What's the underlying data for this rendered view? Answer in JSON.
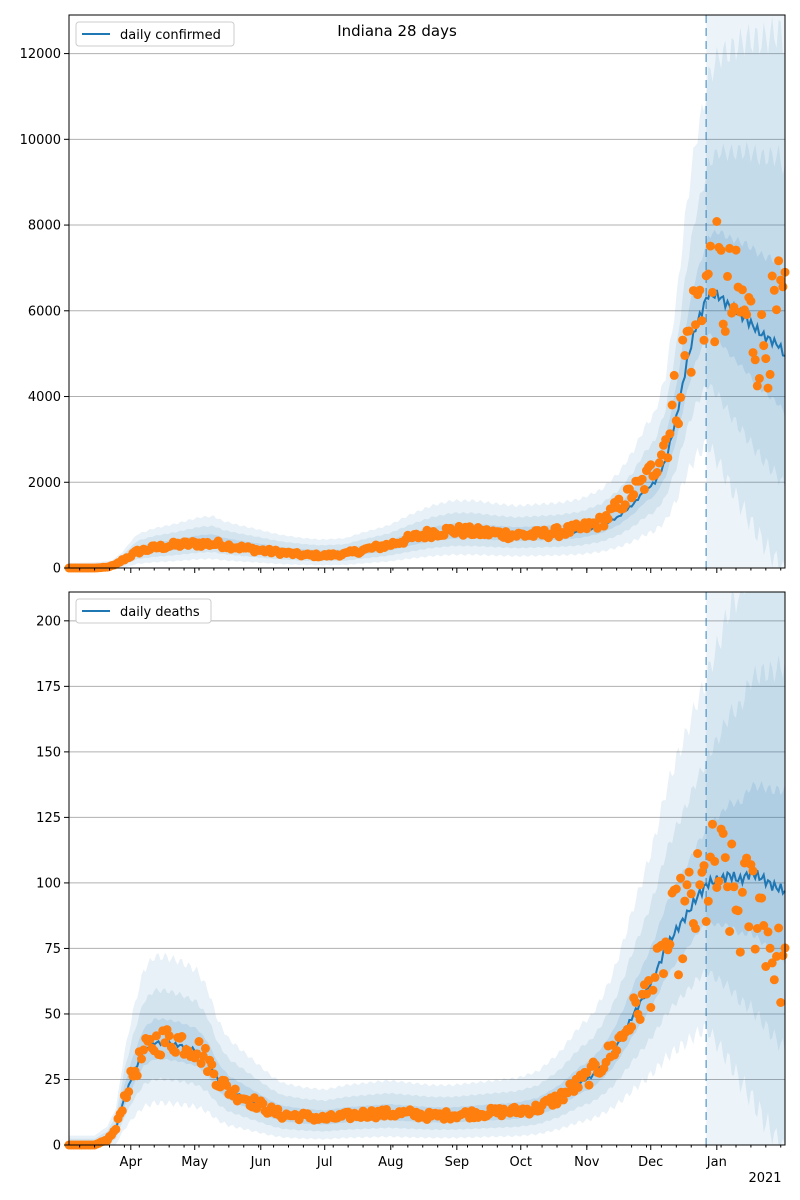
{
  "chart_data": [
    {
      "type": "line",
      "title": "Indiana 28 days",
      "legend": {
        "label": "daily confirmed",
        "placement": "top-left"
      },
      "ylim": [
        0,
        12900
      ],
      "yticks": [
        0,
        2000,
        4000,
        6000,
        8000,
        10000,
        12000
      ],
      "grid": "horizontal",
      "forecast_start_day": 299,
      "colors": {
        "line": "#1f77b4",
        "points": "#ff7f0e",
        "band": "#1f77b4"
      },
      "model_knots": [
        [
          0,
          0
        ],
        [
          10,
          5
        ],
        [
          15,
          15
        ],
        [
          20,
          30
        ],
        [
          25,
          140
        ],
        [
          28,
          250
        ],
        [
          32,
          380
        ],
        [
          40,
          460
        ],
        [
          50,
          520
        ],
        [
          55,
          560
        ],
        [
          62,
          610
        ],
        [
          68,
          620
        ],
        [
          72,
          560
        ],
        [
          80,
          500
        ],
        [
          88,
          450
        ],
        [
          95,
          400
        ],
        [
          100,
          370
        ],
        [
          110,
          330
        ],
        [
          118,
          310
        ],
        [
          125,
          320
        ],
        [
          130,
          330
        ],
        [
          135,
          380
        ],
        [
          140,
          420
        ],
        [
          150,
          500
        ],
        [
          160,
          640
        ],
        [
          170,
          760
        ],
        [
          180,
          830
        ],
        [
          190,
          830
        ],
        [
          200,
          790
        ],
        [
          210,
          760
        ],
        [
          220,
          780
        ],
        [
          230,
          800
        ],
        [
          240,
          850
        ],
        [
          250,
          980
        ],
        [
          258,
          1200
        ],
        [
          265,
          1500
        ],
        [
          270,
          1800
        ],
        [
          275,
          2000
        ],
        [
          280,
          2500
        ],
        [
          285,
          3500
        ],
        [
          290,
          4800
        ],
        [
          294,
          5600
        ],
        [
          297,
          6000
        ],
        [
          300,
          6400
        ],
        [
          305,
          6350
        ],
        [
          310,
          6100
        ],
        [
          318,
          5800
        ],
        [
          325,
          5450
        ],
        [
          333,
          5200
        ],
        [
          336,
          4950
        ]
      ],
      "observed_knots": [
        [
          0,
          0
        ],
        [
          12,
          0
        ],
        [
          18,
          20
        ],
        [
          22,
          80
        ],
        [
          25,
          180
        ],
        [
          28,
          260
        ],
        [
          32,
          380
        ],
        [
          40,
          470
        ],
        [
          50,
          540
        ],
        [
          60,
          570
        ],
        [
          70,
          560
        ],
        [
          80,
          480
        ],
        [
          90,
          410
        ],
        [
          100,
          360
        ],
        [
          110,
          300
        ],
        [
          120,
          290
        ],
        [
          130,
          330
        ],
        [
          140,
          440
        ],
        [
          150,
          540
        ],
        [
          160,
          690
        ],
        [
          170,
          820
        ],
        [
          180,
          880
        ],
        [
          190,
          840
        ],
        [
          200,
          810
        ],
        [
          210,
          770
        ],
        [
          220,
          780
        ],
        [
          230,
          840
        ],
        [
          240,
          920
        ],
        [
          250,
          1080
        ],
        [
          258,
          1450
        ],
        [
          265,
          1800
        ],
        [
          270,
          2000
        ],
        [
          275,
          2400
        ],
        [
          280,
          3000
        ],
        [
          285,
          4000
        ],
        [
          290,
          5200
        ],
        [
          295,
          6000
        ],
        [
          300,
          6700
        ],
        [
          305,
          6600
        ],
        [
          310,
          6250
        ],
        [
          318,
          5900
        ],
        [
          325,
          5100
        ],
        [
          333,
          5900
        ],
        [
          336,
          6000
        ]
      ]
    },
    {
      "type": "line",
      "title": "",
      "legend": {
        "label": "daily deaths",
        "placement": "top-left"
      },
      "ylim": [
        0,
        211
      ],
      "yticks": [
        0,
        25,
        50,
        75,
        100,
        125,
        150,
        175,
        200
      ],
      "grid": "horizontal",
      "forecast_start_day": 299,
      "colors": {
        "line": "#1f77b4",
        "points": "#ff7f0e",
        "band": "#1f77b4"
      },
      "model_knots": [
        [
          0,
          0
        ],
        [
          12,
          0
        ],
        [
          18,
          2
        ],
        [
          22,
          6
        ],
        [
          26,
          18
        ],
        [
          30,
          27
        ],
        [
          35,
          36
        ],
        [
          40,
          39
        ],
        [
          45,
          39
        ],
        [
          52,
          38
        ],
        [
          60,
          36
        ],
        [
          65,
          32
        ],
        [
          70,
          25
        ],
        [
          75,
          21
        ],
        [
          80,
          19
        ],
        [
          85,
          17
        ],
        [
          90,
          15
        ],
        [
          95,
          13
        ],
        [
          100,
          11.5
        ],
        [
          110,
          10.5
        ],
        [
          120,
          10
        ],
        [
          130,
          11
        ],
        [
          140,
          11.5
        ],
        [
          150,
          12
        ],
        [
          160,
          11.5
        ],
        [
          170,
          11
        ],
        [
          180,
          11
        ],
        [
          190,
          11.5
        ],
        [
          200,
          12
        ],
        [
          210,
          12.5
        ],
        [
          220,
          14
        ],
        [
          230,
          18
        ],
        [
          235,
          21
        ],
        [
          240,
          24
        ],
        [
          245,
          26
        ],
        [
          250,
          30
        ],
        [
          255,
          35
        ],
        [
          260,
          42
        ],
        [
          265,
          50
        ],
        [
          270,
          57
        ],
        [
          275,
          65
        ],
        [
          280,
          75
        ],
        [
          285,
          82
        ],
        [
          290,
          88
        ],
        [
          295,
          95
        ],
        [
          300,
          100
        ],
        [
          305,
          101
        ],
        [
          310,
          103
        ],
        [
          315,
          101
        ],
        [
          320,
          104
        ],
        [
          325,
          102
        ],
        [
          330,
          99
        ],
        [
          336,
          97
        ]
      ],
      "observed_knots": [
        [
          0,
          0
        ],
        [
          12,
          0
        ],
        [
          18,
          2
        ],
        [
          22,
          6
        ],
        [
          26,
          18
        ],
        [
          30,
          27
        ],
        [
          35,
          35
        ],
        [
          40,
          39
        ],
        [
          45,
          40
        ],
        [
          52,
          40
        ],
        [
          60,
          37
        ],
        [
          65,
          32
        ],
        [
          70,
          25
        ],
        [
          75,
          21
        ],
        [
          80,
          19
        ],
        [
          85,
          17
        ],
        [
          90,
          15
        ],
        [
          95,
          13
        ],
        [
          100,
          11.5
        ],
        [
          110,
          11
        ],
        [
          120,
          10
        ],
        [
          130,
          11
        ],
        [
          140,
          12
        ],
        [
          150,
          12
        ],
        [
          160,
          12
        ],
        [
          170,
          11
        ],
        [
          180,
          11.5
        ],
        [
          190,
          12
        ],
        [
          200,
          12.5
        ],
        [
          210,
          13
        ],
        [
          220,
          14
        ],
        [
          230,
          18
        ],
        [
          235,
          21
        ],
        [
          240,
          24
        ],
        [
          245,
          27
        ],
        [
          250,
          31
        ],
        [
          255,
          36
        ],
        [
          260,
          42
        ],
        [
          265,
          50
        ],
        [
          270,
          56
        ],
        [
          275,
          64
        ],
        [
          280,
          74
        ],
        [
          285,
          82
        ],
        [
          290,
          88
        ],
        [
          295,
          92
        ],
        [
          300,
          100
        ],
        [
          305,
          104
        ],
        [
          310,
          96
        ],
        [
          315,
          88
        ],
        [
          320,
          95
        ],
        [
          325,
          90
        ],
        [
          330,
          74
        ],
        [
          336,
          65
        ]
      ]
    }
  ],
  "x_axis": {
    "range_days": [
      0,
      336
    ],
    "month_ticks": [
      {
        "label": "Apr",
        "day": 29
      },
      {
        "label": "May",
        "day": 59
      },
      {
        "label": "Jun",
        "day": 90
      },
      {
        "label": "Jul",
        "day": 120
      },
      {
        "label": "Aug",
        "day": 151
      },
      {
        "label": "Sep",
        "day": 182
      },
      {
        "label": "Oct",
        "day": 212
      },
      {
        "label": "Nov",
        "day": 243
      },
      {
        "label": "Dec",
        "day": 273
      },
      {
        "label": "Jan",
        "day": 304
      }
    ],
    "year_label": "2021"
  }
}
